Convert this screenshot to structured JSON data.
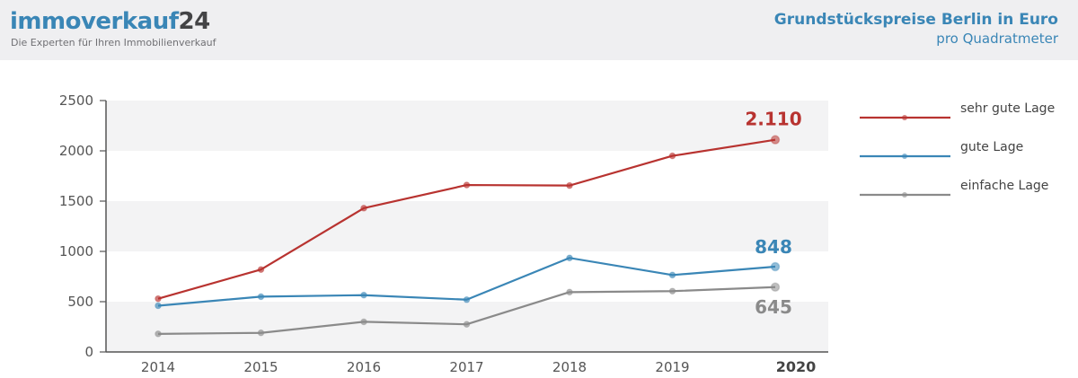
{
  "header": {
    "logo_part1": "immoverkauf",
    "logo_part2": "24",
    "tagline": "Die Experten für Ihren Immobilienverkauf",
    "title": "Grundstückspreise Berlin in Euro",
    "subtitle": "pro Quadratmeter"
  },
  "chart_data": {
    "type": "line",
    "categories": [
      "2014",
      "2015",
      "2016",
      "2017",
      "2018",
      "2019",
      "2020"
    ],
    "ylim": [
      0,
      2500
    ],
    "yticks": [
      0,
      500,
      1000,
      1500,
      2000,
      2500
    ],
    "grid": "alternating horizontal bands",
    "legend_position": "right",
    "series": [
      {
        "name": "sehr gute Lage",
        "color": "#b83330",
        "values": [
          530,
          820,
          1430,
          1660,
          1655,
          1950,
          2110
        ],
        "end_label": "2.110"
      },
      {
        "name": "gute Lage",
        "color": "#3a86b6",
        "values": [
          460,
          550,
          565,
          520,
          935,
          765,
          848
        ],
        "end_label": "848"
      },
      {
        "name": "einfache Lage",
        "color": "#8a8a8a",
        "values": [
          180,
          190,
          300,
          275,
          595,
          605,
          645
        ],
        "end_label": "645"
      }
    ]
  }
}
